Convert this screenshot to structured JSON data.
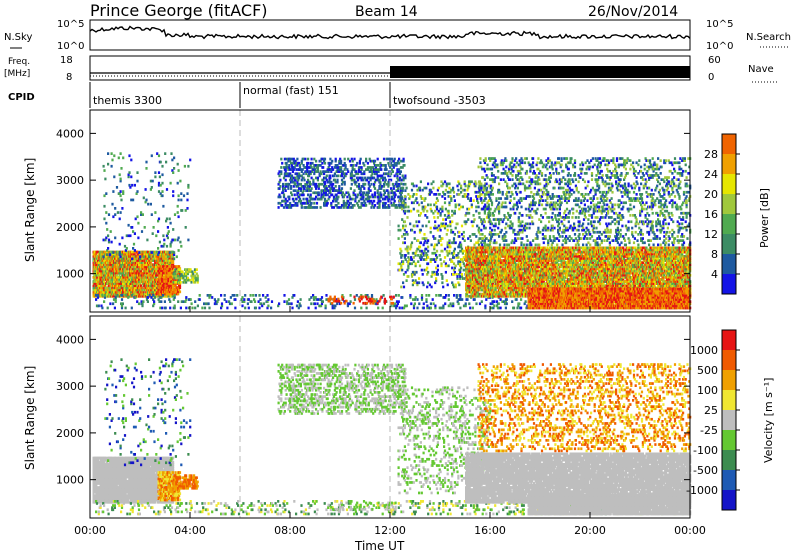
{
  "header": {
    "station": "Prince George (fitACF)",
    "beam": "Beam 14",
    "date": "26/Nov/2014"
  },
  "top_panels": {
    "nsky_label": "N.Sky",
    "nsky_ticks": [
      "10^5",
      "10^0"
    ],
    "nsearch_label": "N.Search",
    "nsearch_ticks": [
      "10^5",
      "10^0"
    ],
    "freq_label_1": "Freq.",
    "freq_label_2": "[MHz]",
    "freq_ticks": [
      "18",
      "8"
    ],
    "nave_label": "Nave",
    "nave_ticks": [
      "60",
      "0"
    ],
    "cpid_label": "CPID",
    "cpid_segments": [
      {
        "label": "themis 3300",
        "start_h": 0,
        "end_h": 6
      },
      {
        "label": "normal (fast) 151",
        "start_h": 6,
        "end_h": 12
      },
      {
        "label": "twofsound -3503",
        "start_h": 12,
        "end_h": 24
      }
    ]
  },
  "colors": {
    "power": [
      "#1414e6",
      "#1e5aa0",
      "#3c8c64",
      "#50aa50",
      "#a0c83c",
      "#e6e600",
      "#f0a000",
      "#f06400",
      "#e61414"
    ],
    "velocity": [
      "#1414c8",
      "#1e5ab4",
      "#3c8c50",
      "#64c832",
      "#bebebe",
      "#f0e632",
      "#f0a000",
      "#f05a00",
      "#e61414"
    ]
  },
  "chart_data": [
    {
      "type": "heatmap",
      "title": "Power",
      "ylabel": "Slant Range [km]",
      "xlabel": "",
      "x_ticks": [
        "00:00",
        "04:00",
        "08:00",
        "12:00",
        "16:00",
        "20:00",
        "00:00"
      ],
      "y_ticks": [
        "1000",
        "2000",
        "3000",
        "4000"
      ],
      "xlim_hours": [
        0,
        24
      ],
      "ylim_km": [
        180,
        4500
      ],
      "colorbar_label": "Power [dB]",
      "colorbar_ticks": [
        "4",
        "8",
        "12",
        "16",
        "20",
        "24",
        "28"
      ],
      "colorbar_range": [
        0,
        32
      ]
    },
    {
      "type": "heatmap",
      "title": "Velocity",
      "ylabel": "Slant Range [km]",
      "xlabel": "Time UT",
      "x_ticks": [
        "00:00",
        "04:00",
        "08:00",
        "12:00",
        "16:00",
        "20:00",
        "00:00"
      ],
      "y_ticks": [
        "1000",
        "2000",
        "3000",
        "4000"
      ],
      "xlim_hours": [
        0,
        24
      ],
      "ylim_km": [
        180,
        4500
      ],
      "colorbar_label": "Velocity [m s⁻¹]",
      "colorbar_ticks": [
        "1000",
        "500",
        "100",
        "25",
        "-25",
        "-100",
        "-500",
        "-1000"
      ]
    }
  ]
}
